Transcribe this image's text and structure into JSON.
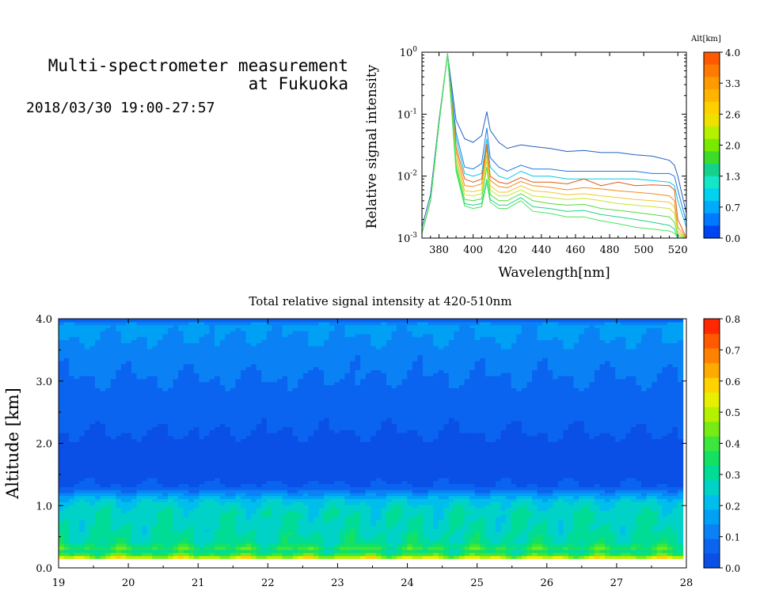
{
  "header": {
    "title_line1": "Multi-spectrometer measurement",
    "title_line2": "at Fukuoka",
    "datetime": "2018/03/30 19:00-27:57"
  },
  "chart_data": [
    {
      "type": "line",
      "xlabel": "Wavelength[nm]",
      "ylabel": "Relative signal intensity",
      "xlim": [
        370,
        525
      ],
      "ylim": [
        0.001,
        1
      ],
      "yscale": "log",
      "x_ticks": [
        380,
        400,
        420,
        440,
        460,
        480,
        500,
        520
      ],
      "y_ticks": [
        {
          "base": "10",
          "exp": "0"
        },
        {
          "base": "10",
          "exp": "-1"
        },
        {
          "base": "10",
          "exp": "-2"
        },
        {
          "base": "10",
          "exp": "-3"
        }
      ],
      "colorbar": {
        "label": "Alt[km]",
        "ticks": [
          "4.0",
          "3.3",
          "2.6",
          "2.0",
          "1.3",
          "0.7",
          "0.0"
        ],
        "colors": [
          "#ff5a00",
          "#ff7a00",
          "#ff9a00",
          "#ffb400",
          "#ffd000",
          "#f0e000",
          "#b4f000",
          "#78ea00",
          "#3cdc28",
          "#14d28c",
          "#14e6c8",
          "#00d2f0",
          "#00aaff",
          "#0078ff",
          "#0046f0"
        ]
      },
      "x": [
        370,
        375,
        380,
        385,
        390,
        395,
        400,
        405,
        408,
        410,
        415,
        420,
        428,
        435,
        445,
        455,
        465,
        475,
        485,
        495,
        505,
        515,
        518,
        520,
        525
      ],
      "series": [
        {
          "color": "#2060c0",
          "values": [
            0.0015,
            0.005,
            0.08,
            0.95,
            0.08,
            0.04,
            0.035,
            0.045,
            0.11,
            0.055,
            0.035,
            0.028,
            0.032,
            0.03,
            0.028,
            0.025,
            0.026,
            0.024,
            0.024,
            0.022,
            0.021,
            0.018,
            0.015,
            0.01,
            0.0025
          ]
        },
        {
          "color": "#1e78e6",
          "values": [
            0.0012,
            0.004,
            0.07,
            0.93,
            0.05,
            0.014,
            0.013,
            0.016,
            0.06,
            0.02,
            0.014,
            0.012,
            0.015,
            0.013,
            0.013,
            0.012,
            0.012,
            0.012,
            0.012,
            0.012,
            0.011,
            0.011,
            0.01,
            0.006,
            0.0018
          ]
        },
        {
          "color": "#00c8e6",
          "values": [
            0.0012,
            0.004,
            0.07,
            0.93,
            0.04,
            0.011,
            0.01,
            0.011,
            0.04,
            0.014,
            0.01,
            0.009,
            0.012,
            0.01,
            0.01,
            0.009,
            0.009,
            0.009,
            0.009,
            0.009,
            0.0085,
            0.008,
            0.007,
            0.004,
            0.0015
          ]
        },
        {
          "color": "#e05a14",
          "values": [
            0.0012,
            0.004,
            0.07,
            0.93,
            0.03,
            0.009,
            0.008,
            0.009,
            0.033,
            0.01,
            0.008,
            0.0075,
            0.0095,
            0.008,
            0.008,
            0.0075,
            0.009,
            0.007,
            0.008,
            0.007,
            0.0072,
            0.007,
            0.006,
            0.002,
            0.001
          ]
        },
        {
          "color": "#f08c1e",
          "values": [
            0.0012,
            0.004,
            0.07,
            0.93,
            0.025,
            0.007,
            0.0068,
            0.0075,
            0.028,
            0.0085,
            0.0068,
            0.0065,
            0.0082,
            0.007,
            0.0066,
            0.006,
            0.0065,
            0.0062,
            0.0058,
            0.0055,
            0.0052,
            0.0048,
            0.004,
            0.0015,
            0.001
          ]
        },
        {
          "color": "#f0c832",
          "values": [
            0.0012,
            0.004,
            0.07,
            0.93,
            0.02,
            0.0058,
            0.0056,
            0.006,
            0.022,
            0.007,
            0.0055,
            0.0055,
            0.007,
            0.0058,
            0.0055,
            0.005,
            0.0052,
            0.0048,
            0.0045,
            0.0042,
            0.004,
            0.0038,
            0.0032,
            0.0013,
            0.001
          ]
        },
        {
          "color": "#c8e628",
          "values": [
            0.0012,
            0.004,
            0.07,
            0.93,
            0.018,
            0.005,
            0.0048,
            0.0052,
            0.018,
            0.006,
            0.0048,
            0.0048,
            0.006,
            0.0048,
            0.0045,
            0.0042,
            0.0044,
            0.004,
            0.0036,
            0.0034,
            0.0032,
            0.003,
            0.0025,
            0.0012,
            0.001
          ]
        },
        {
          "color": "#50dc3c",
          "values": [
            0.0012,
            0.004,
            0.07,
            0.93,
            0.015,
            0.0042,
            0.004,
            0.0043,
            0.014,
            0.005,
            0.004,
            0.004,
            0.0052,
            0.004,
            0.0036,
            0.0034,
            0.0035,
            0.003,
            0.0028,
            0.0026,
            0.0024,
            0.0022,
            0.0018,
            0.0011,
            0.001
          ]
        },
        {
          "color": "#1ed28c",
          "values": [
            0.0012,
            0.004,
            0.07,
            0.93,
            0.013,
            0.0036,
            0.0034,
            0.0036,
            0.009,
            0.0042,
            0.0034,
            0.0034,
            0.0045,
            0.0032,
            0.003,
            0.0027,
            0.0028,
            0.0024,
            0.0022,
            0.002,
            0.0018,
            0.0016,
            0.0014,
            0.001,
            0.001
          ]
        },
        {
          "color": "#46e656",
          "values": [
            0.0012,
            0.004,
            0.07,
            0.93,
            0.012,
            0.0033,
            0.003,
            0.0032,
            0.008,
            0.0038,
            0.003,
            0.003,
            0.004,
            0.0027,
            0.0025,
            0.0022,
            0.0022,
            0.0019,
            0.0017,
            0.0015,
            0.0014,
            0.0013,
            0.0012,
            0.001,
            0.001
          ]
        }
      ]
    },
    {
      "type": "heatmap",
      "title": "Total relative signal intensity at 420-510nm",
      "xlabel": "",
      "ylabel": "Altitude [km]",
      "xlim": [
        19,
        28
      ],
      "ylim": [
        0,
        4
      ],
      "x_ticks": [
        "19",
        "20",
        "21",
        "22",
        "23",
        "24",
        "25",
        "26",
        "27",
        "28"
      ],
      "y_ticks": [
        "4.0",
        "3.0",
        "2.0",
        "1.0",
        "0.0"
      ],
      "data_x_range": [
        19,
        27.95
      ],
      "data_y_range": [
        0.15,
        4.0
      ],
      "profile": [
        {
          "alt": 0.15,
          "value": 0.55
        },
        {
          "alt": 0.2,
          "value": 0.45
        },
        {
          "alt": 0.25,
          "value": 0.3
        },
        {
          "alt": 0.32,
          "value": 0.38
        },
        {
          "alt": 0.4,
          "value": 0.3
        },
        {
          "alt": 0.6,
          "value": 0.28
        },
        {
          "alt": 0.9,
          "value": 0.27
        },
        {
          "alt": 1.1,
          "value": 0.22
        },
        {
          "alt": 1.2,
          "value": 0.13
        },
        {
          "alt": 1.3,
          "value": 0.05
        },
        {
          "alt": 1.6,
          "value": 0.03
        },
        {
          "alt": 2.0,
          "value": 0.04
        },
        {
          "alt": 2.5,
          "value": 0.06
        },
        {
          "alt": 3.0,
          "value": 0.09
        },
        {
          "alt": 3.5,
          "value": 0.12
        },
        {
          "alt": 3.9,
          "value": 0.16
        },
        {
          "alt": 4.0,
          "value": 0.05
        }
      ],
      "colorbar": {
        "ticks": [
          "0.8",
          "0.7",
          "0.6",
          "0.5",
          "0.4",
          "0.3",
          "0.2",
          "0.1",
          "0.0"
        ],
        "colors": [
          "#0a50e6",
          "#0a64f0",
          "#0a82f5",
          "#00a0f5",
          "#00beeb",
          "#00d2c8",
          "#00dc96",
          "#14e164",
          "#3ce63c",
          "#78eb14",
          "#b4f000",
          "#e6f000",
          "#ffd200",
          "#ffaa00",
          "#ff8200",
          "#ff5a00",
          "#ff2800"
        ]
      }
    }
  ]
}
